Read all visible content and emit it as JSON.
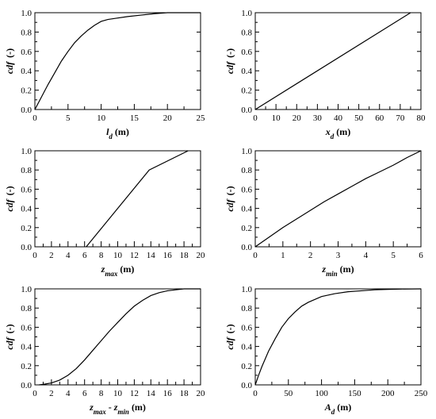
{
  "chart_data": [
    {
      "type": "line",
      "ylabel_main": "cdf",
      "ylabel_unit": "(-)",
      "xlabel_parts": [
        {
          "text": "l",
          "style": "italic"
        },
        {
          "text": "d",
          "style": "sub-italic"
        },
        {
          "text": " (m)",
          "style": "normal"
        }
      ],
      "xlim": [
        0,
        25
      ],
      "ylim": [
        0,
        1
      ],
      "xticks": [
        0,
        5,
        10,
        15,
        20,
        25
      ],
      "xtick_labels": [
        "0",
        "5",
        "10",
        "15",
        "20",
        "25"
      ],
      "yticks": [
        0,
        0.2,
        0.4,
        0.6,
        0.8,
        1.0
      ],
      "ytick_labels": [
        "0.0",
        "0.2",
        "0.4",
        "0.6",
        "0.8",
        "1.0"
      ],
      "series": [
        {
          "x": [
            0,
            1,
            2,
            3,
            4,
            5,
            6,
            7,
            8,
            9,
            10,
            11,
            12,
            14,
            16,
            18,
            20,
            21,
            25
          ],
          "y": [
            0,
            0.13,
            0.26,
            0.38,
            0.5,
            0.6,
            0.69,
            0.76,
            0.82,
            0.87,
            0.91,
            0.93,
            0.94,
            0.96,
            0.975,
            0.99,
            1.0,
            1.0,
            1.0
          ]
        }
      ]
    },
    {
      "type": "line",
      "ylabel_main": "cdf",
      "ylabel_unit": "(-)",
      "xlabel_parts": [
        {
          "text": "x",
          "style": "italic"
        },
        {
          "text": "d",
          "style": "sub-italic"
        },
        {
          "text": " (m)",
          "style": "normal"
        }
      ],
      "xlim": [
        0,
        80
      ],
      "ylim": [
        0,
        1
      ],
      "xticks": [
        0,
        10,
        20,
        30,
        40,
        50,
        60,
        70,
        80
      ],
      "xtick_labels": [
        "0",
        "10",
        "20",
        "30",
        "40",
        "50",
        "60",
        "70",
        "80"
      ],
      "yticks": [
        0,
        0.2,
        0.4,
        0.6,
        0.8,
        1.0
      ],
      "ytick_labels": [
        "0.0",
        "0.2",
        "0.4",
        "0.6",
        "0.8",
        "1.0"
      ],
      "series": [
        {
          "x": [
            0,
            75
          ],
          "y": [
            0,
            1.0
          ]
        }
      ]
    },
    {
      "type": "line",
      "ylabel_main": "cdf",
      "ylabel_unit": "(-)",
      "xlabel_parts": [
        {
          "text": "z",
          "style": "italic"
        },
        {
          "text": "max",
          "style": "sub-italic"
        },
        {
          "text": " (m)",
          "style": "normal"
        }
      ],
      "xlim": [
        0,
        20
      ],
      "ylim": [
        0,
        1
      ],
      "xticks": [
        0,
        2,
        4,
        6,
        8,
        10,
        12,
        14,
        16,
        18,
        20
      ],
      "xtick_labels": [
        "0",
        "2",
        "4",
        "6",
        "8",
        "10",
        "12",
        "14",
        "16",
        "18",
        "20"
      ],
      "yticks": [
        0,
        0.2,
        0.4,
        0.6,
        0.8,
        1.0
      ],
      "ytick_labels": [
        "0.0",
        "0.2",
        "0.4",
        "0.6",
        "0.8",
        "1.0"
      ],
      "series": [
        {
          "x": [
            6.2,
            13.8,
            18.5
          ],
          "y": [
            0,
            0.8,
            1.0
          ]
        }
      ]
    },
    {
      "type": "line",
      "ylabel_main": "cdf",
      "ylabel_unit": "(-)",
      "xlabel_parts": [
        {
          "text": "z",
          "style": "italic"
        },
        {
          "text": "min",
          "style": "sub-italic"
        },
        {
          "text": " (m)",
          "style": "normal"
        }
      ],
      "xlim": [
        0,
        6
      ],
      "ylim": [
        0,
        1
      ],
      "xticks": [
        0,
        1,
        2,
        3,
        4,
        5,
        6
      ],
      "xtick_labels": [
        "0",
        "1",
        "2",
        "3",
        "4",
        "5",
        "6"
      ],
      "yticks": [
        0,
        0.2,
        0.4,
        0.6,
        0.8,
        1.0
      ],
      "ytick_labels": [
        "0.0",
        "0.2",
        "0.4",
        "0.6",
        "0.8",
        "1.0"
      ],
      "series": [
        {
          "x": [
            0,
            0.5,
            1,
            1.5,
            2,
            2.5,
            3,
            3.5,
            4,
            4.5,
            5,
            5.5,
            6
          ],
          "y": [
            0,
            0.1,
            0.2,
            0.29,
            0.38,
            0.47,
            0.55,
            0.63,
            0.71,
            0.78,
            0.85,
            0.93,
            1.0
          ]
        }
      ]
    },
    {
      "type": "line",
      "ylabel_main": "cdf",
      "ylabel_unit": "(-)",
      "xlabel_parts": [
        {
          "text": "z",
          "style": "italic"
        },
        {
          "text": "max",
          "style": "sub-italic"
        },
        {
          "text": " - ",
          "style": "normal"
        },
        {
          "text": "z",
          "style": "italic"
        },
        {
          "text": "min",
          "style": "sub-italic"
        },
        {
          "text": " (m)",
          "style": "normal"
        }
      ],
      "xlim": [
        0,
        20
      ],
      "ylim": [
        0,
        1
      ],
      "xticks": [
        0,
        2,
        4,
        6,
        8,
        10,
        12,
        14,
        16,
        18,
        20
      ],
      "xtick_labels": [
        "0",
        "2",
        "4",
        "6",
        "8",
        "10",
        "12",
        "14",
        "16",
        "18",
        "20"
      ],
      "yticks": [
        0,
        0.2,
        0.4,
        0.6,
        0.8,
        1.0
      ],
      "ytick_labels": [
        "0.0",
        "0.2",
        "0.4",
        "0.6",
        "0.8",
        "1.0"
      ],
      "series": [
        {
          "x": [
            0.5,
            1,
            2,
            3,
            4,
            5,
            6,
            7,
            8,
            9,
            10,
            11,
            12,
            13,
            14,
            15,
            16,
            17,
            18,
            20
          ],
          "y": [
            0,
            0.005,
            0.02,
            0.05,
            0.1,
            0.17,
            0.26,
            0.36,
            0.46,
            0.56,
            0.65,
            0.74,
            0.82,
            0.88,
            0.93,
            0.96,
            0.98,
            0.99,
            1.0,
            1.0
          ]
        }
      ]
    },
    {
      "type": "line",
      "ylabel_main": "cdf",
      "ylabel_unit": "(-)",
      "xlabel_parts": [
        {
          "text": "A",
          "style": "italic"
        },
        {
          "text": "d",
          "style": "sub-italic"
        },
        {
          "text": " (m)",
          "style": "normal"
        }
      ],
      "xlim": [
        0,
        250
      ],
      "ylim": [
        0,
        1
      ],
      "xticks": [
        0,
        50,
        100,
        150,
        200,
        250
      ],
      "xtick_labels": [
        "0",
        "50",
        "100",
        "150",
        "200",
        "250"
      ],
      "yticks": [
        0,
        0.2,
        0.4,
        0.6,
        0.8,
        1.0
      ],
      "ytick_labels": [
        "0.0",
        "0.2",
        "0.4",
        "0.6",
        "0.8",
        "1.0"
      ],
      "series": [
        {
          "x": [
            0,
            5,
            10,
            20,
            30,
            40,
            50,
            60,
            70,
            80,
            90,
            100,
            120,
            140,
            160,
            180,
            200,
            220,
            250
          ],
          "y": [
            0,
            0.1,
            0.19,
            0.35,
            0.48,
            0.6,
            0.69,
            0.76,
            0.82,
            0.86,
            0.89,
            0.92,
            0.95,
            0.97,
            0.98,
            0.99,
            0.995,
            0.998,
            1.0
          ]
        }
      ]
    }
  ]
}
